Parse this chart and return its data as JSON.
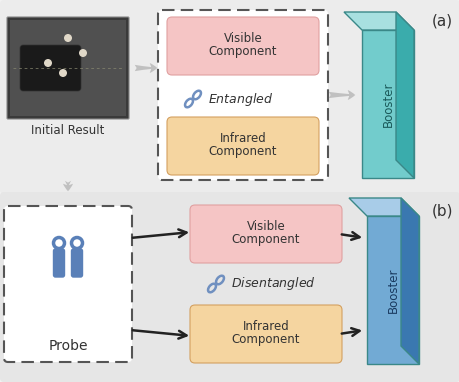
{
  "bg_color": "#f2f2f2",
  "top_panel_bg": "#ececec",
  "bottom_panel_bg": "#e6e6e6",
  "visible_box_color": "#f5c5c5",
  "infrared_box_color": "#f5d5a0",
  "probe_box_bg": "#ffffff",
  "booster_top_a": "#a8e0e0",
  "booster_front_a": "#72cccc",
  "booster_side_a": "#3aacac",
  "booster_top_b": "#a8cce8",
  "booster_front_b": "#72aad4",
  "booster_side_b": "#3a78b0",
  "link_color": "#7090c0",
  "text_color": "#333333",
  "label_a": "(a)",
  "label_b": "(b)",
  "entangled_text": "Entangled",
  "disentangled_text": "Disentangled",
  "visible_text1": "Visible",
  "visible_text2": "Component",
  "infrared_text1": "Infrared",
  "infrared_text2": "Component",
  "probe_text": "Probe",
  "booster_text": "Booster",
  "initial_result_text": "Initial Result"
}
